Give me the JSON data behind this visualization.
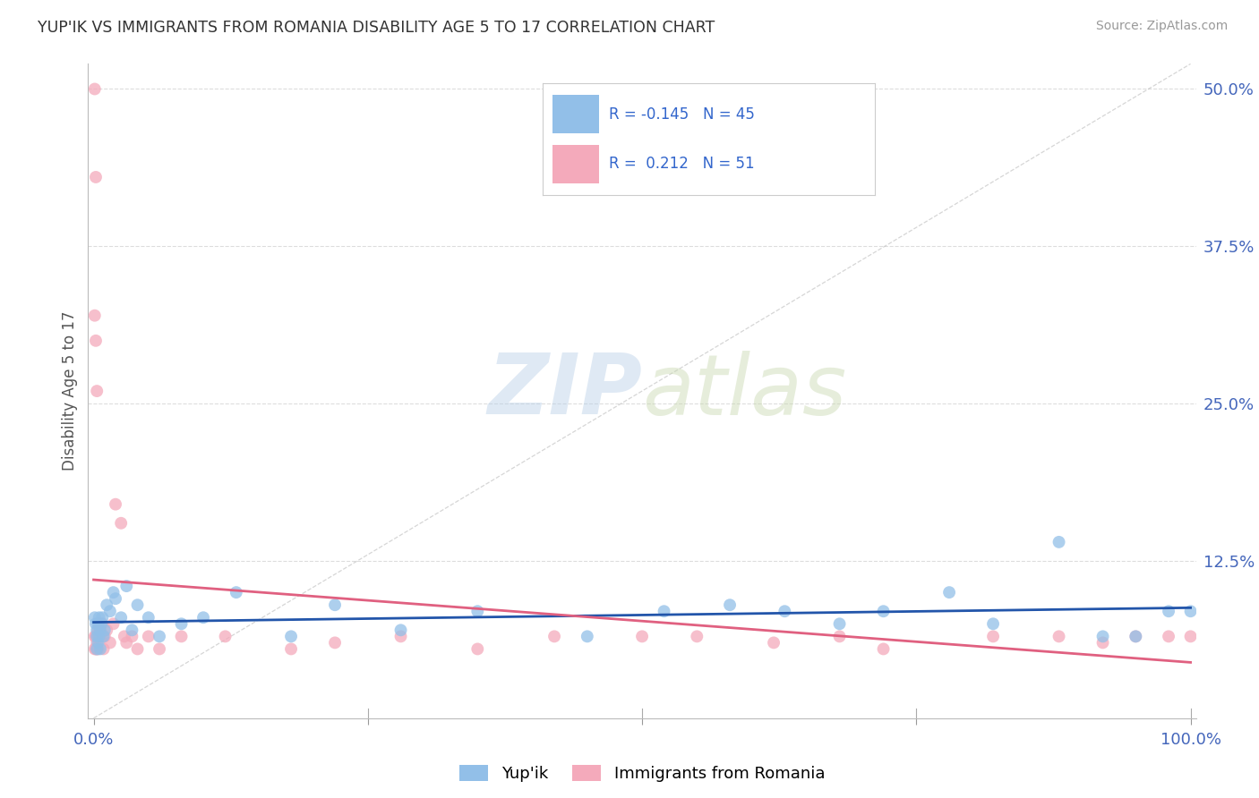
{
  "title": "YUP'IK VS IMMIGRANTS FROM ROMANIA DISABILITY AGE 5 TO 17 CORRELATION CHART",
  "source": "Source: ZipAtlas.com",
  "ylabel": "Disability Age 5 to 17",
  "r_yupik": -0.145,
  "n_yupik": 45,
  "r_romania": 0.212,
  "n_romania": 51,
  "yupik_color": "#92BFE8",
  "romania_color": "#F4AABB",
  "yupik_line_color": "#2255AA",
  "romania_line_color": "#E06080",
  "background_color": "#ffffff",
  "grid_color": "#dddddd",
  "watermark_zip": "ZIP",
  "watermark_atlas": "atlas",
  "yupik_points_x": [
    0.001,
    0.002,
    0.003,
    0.003,
    0.004,
    0.004,
    0.005,
    0.005,
    0.006,
    0.007,
    0.008,
    0.009,
    0.01,
    0.012,
    0.015,
    0.018,
    0.02,
    0.025,
    0.03,
    0.035,
    0.04,
    0.05,
    0.06,
    0.08,
    0.1,
    0.13,
    0.18,
    0.22,
    0.28,
    0.35,
    0.45,
    0.52,
    0.58,
    0.63,
    0.68,
    0.72,
    0.78,
    0.82,
    0.88,
    0.92,
    0.95,
    0.98,
    1.0,
    0.003,
    0.006
  ],
  "yupik_points_y": [
    0.08,
    0.075,
    0.07,
    0.065,
    0.075,
    0.06,
    0.08,
    0.065,
    0.07,
    0.075,
    0.08,
    0.065,
    0.07,
    0.09,
    0.085,
    0.1,
    0.095,
    0.08,
    0.105,
    0.07,
    0.09,
    0.08,
    0.065,
    0.075,
    0.08,
    0.1,
    0.065,
    0.09,
    0.07,
    0.085,
    0.065,
    0.085,
    0.09,
    0.085,
    0.075,
    0.085,
    0.1,
    0.075,
    0.14,
    0.065,
    0.065,
    0.085,
    0.085,
    0.055,
    0.055
  ],
  "romania_points_x": [
    0.001,
    0.001,
    0.001,
    0.002,
    0.002,
    0.002,
    0.003,
    0.003,
    0.003,
    0.004,
    0.004,
    0.005,
    0.005,
    0.006,
    0.007,
    0.008,
    0.009,
    0.01,
    0.012,
    0.015,
    0.018,
    0.02,
    0.025,
    0.028,
    0.03,
    0.035,
    0.04,
    0.05,
    0.06,
    0.08,
    0.12,
    0.18,
    0.22,
    0.28,
    0.35,
    0.42,
    0.5,
    0.55,
    0.62,
    0.68,
    0.72,
    0.82,
    0.88,
    0.92,
    0.95,
    0.98,
    1.0,
    0.001,
    0.002,
    0.003,
    0.004
  ],
  "romania_points_y": [
    0.5,
    0.065,
    0.055,
    0.43,
    0.065,
    0.055,
    0.065,
    0.06,
    0.055,
    0.07,
    0.055,
    0.075,
    0.065,
    0.07,
    0.065,
    0.075,
    0.055,
    0.065,
    0.07,
    0.06,
    0.075,
    0.17,
    0.155,
    0.065,
    0.06,
    0.065,
    0.055,
    0.065,
    0.055,
    0.065,
    0.065,
    0.055,
    0.06,
    0.065,
    0.055,
    0.065,
    0.065,
    0.065,
    0.06,
    0.065,
    0.055,
    0.065,
    0.065,
    0.06,
    0.065,
    0.065,
    0.065,
    0.32,
    0.3,
    0.26,
    0.065
  ]
}
